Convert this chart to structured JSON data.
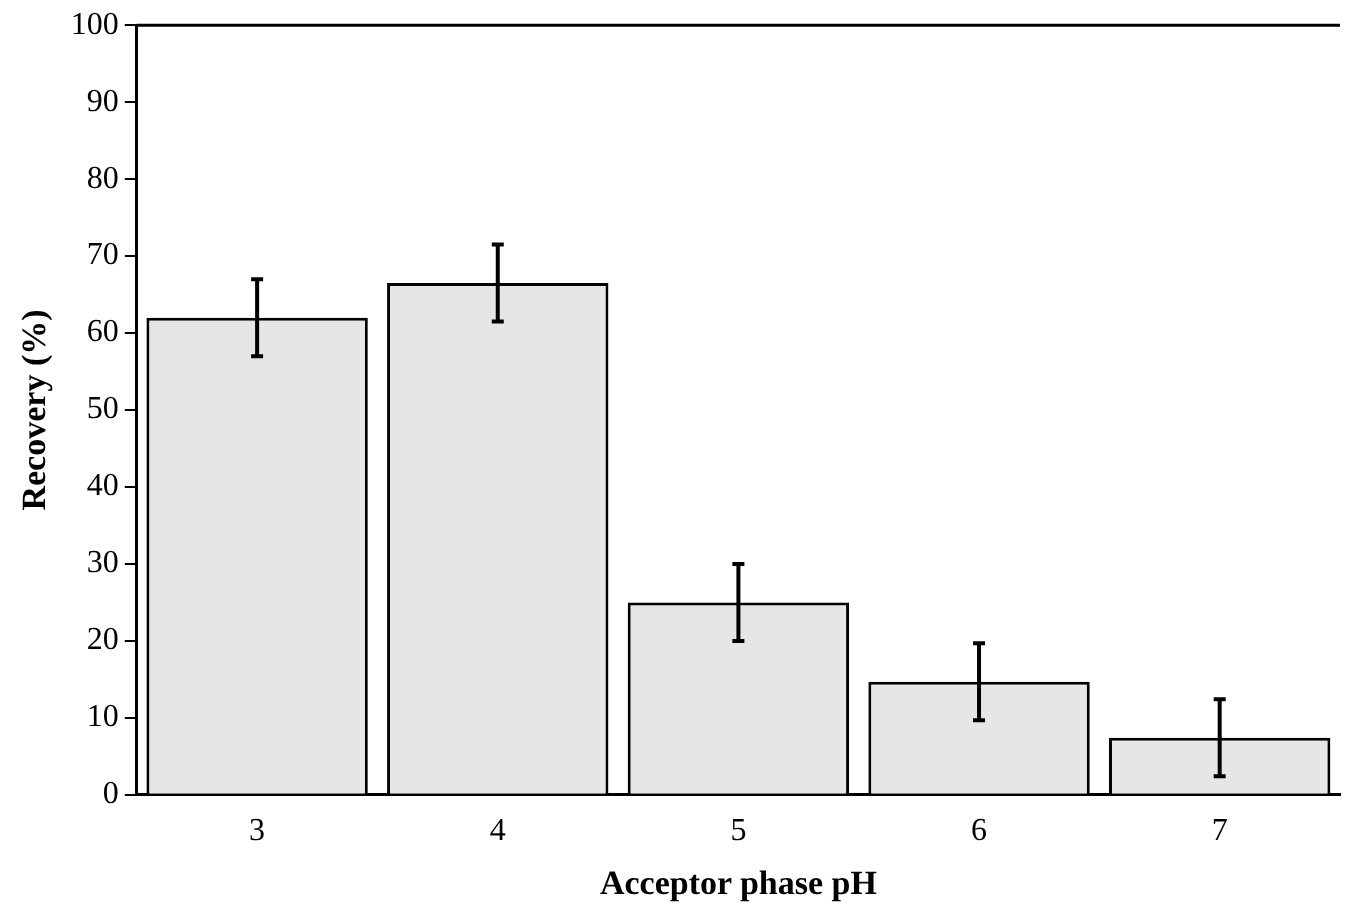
{
  "chart_data": {
    "type": "bar",
    "xlabel": "Acceptor phase pH",
    "ylabel": "Recovery (%)",
    "categories": [
      "3",
      "4",
      "5",
      "6",
      "7"
    ],
    "values": [
      62,
      66.5,
      25,
      14.7,
      7.4
    ],
    "errors": [
      5,
      5,
      5,
      5,
      5
    ],
    "color": "#e6e6e6",
    "ylim": [
      0,
      100
    ],
    "yticks": [
      0,
      10,
      20,
      30,
      40,
      50,
      60,
      70,
      80,
      90,
      100
    ],
    "grid": false,
    "legend": false
  }
}
